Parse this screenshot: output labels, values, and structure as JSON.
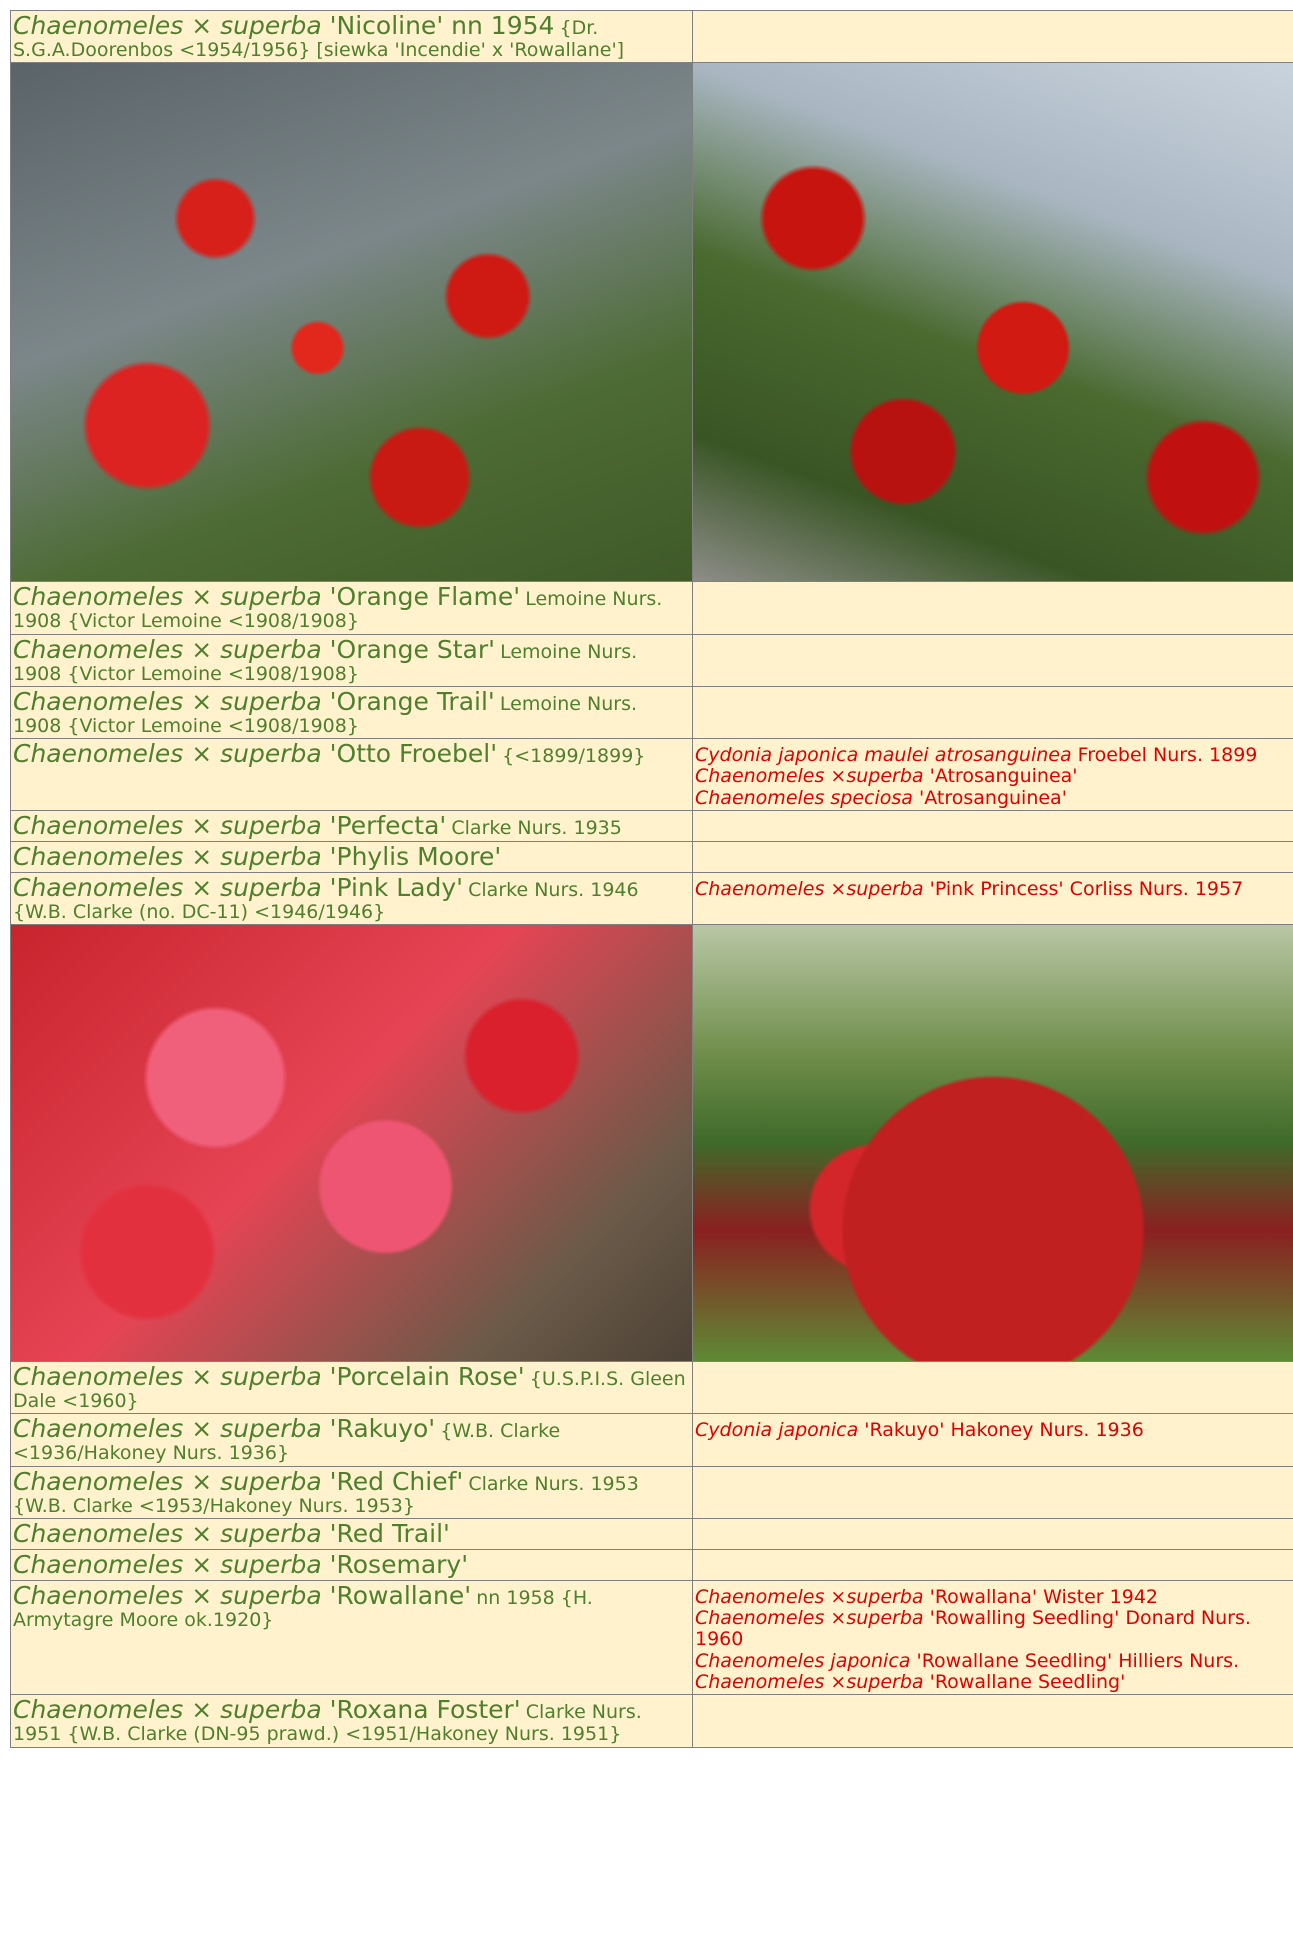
{
  "rows": [
    {
      "genus": "Chaenomeles",
      "cross": "×",
      "species": "superba",
      "cultivar": "'Nicoline'",
      "big": "nn 1954",
      "small": "{Dr. S.G.A.Doorenbos <1954/1956} [siewka 'Incendie' x 'Rowallane']",
      "synonyms": []
    },
    {
      "genus": "Chaenomeles",
      "cross": "×",
      "species": "superba",
      "cultivar": "'Orange Flame'",
      "small": "Lemoine Nurs. 1908 {Victor Lemoine <1908/1908}",
      "synonyms": []
    },
    {
      "genus": "Chaenomeles",
      "cross": "×",
      "species": "superba",
      "cultivar": "'Orange Star'",
      "small": "Lemoine Nurs. 1908 {Victor Lemoine <1908/1908}",
      "synonyms": []
    },
    {
      "genus": "Chaenomeles",
      "cross": "×",
      "species": "superba",
      "cultivar": "'Orange Trail'",
      "small": "Lemoine Nurs. 1908 {Victor Lemoine <1908/1908}",
      "synonyms": []
    },
    {
      "genus": "Chaenomeles",
      "cross": "×",
      "species": "superba",
      "cultivar": "'Otto Froebel'",
      "small": "{<1899/1899}",
      "synonyms": [
        {
          "italic": "Cydonia japonica maulei atrosanguinea",
          "rest": "Froebel Nurs. 1899"
        },
        {
          "italic": "Chaenomeles ×superba",
          "rest": "'Atrosanguinea'"
        },
        {
          "italic": "Chaenomeles speciosa",
          "rest": "'Atrosanguinea'"
        }
      ]
    },
    {
      "genus": "Chaenomeles",
      "cross": "×",
      "species": "superba",
      "cultivar": "'Perfecta'",
      "small": "Clarke Nurs. 1935",
      "synonyms": []
    },
    {
      "genus": "Chaenomeles",
      "cross": "×",
      "species": "superba",
      "cultivar": "'Phylis Moore'",
      "synonyms": []
    },
    {
      "genus": "Chaenomeles",
      "cross": "×",
      "species": "superba",
      "cultivar": "'Pink Lady'",
      "small": "Clarke Nurs. 1946 {W.B. Clarke (no. DC-11) <1946/1946}",
      "synonyms": [
        {
          "italic": "Chaenomeles ×superba",
          "rest": "'Pink Princess' Corliss Nurs. 1957"
        }
      ]
    },
    {
      "genus": "Chaenomeles",
      "cross": "×",
      "species": "superba",
      "cultivar": "'Porcelain Rose'",
      "small": "{U.S.P.I.S. Gleen Dale <1960}",
      "synonyms": []
    },
    {
      "genus": "Chaenomeles",
      "cross": "×",
      "species": "superba",
      "cultivar": "'Rakuyo'",
      "small": "{W.B. Clarke <1936/Hakoney Nurs. 1936}",
      "synonyms": [
        {
          "italic": "Cydonia japonica",
          "rest": "'Rakuyo' Hakoney Nurs. 1936"
        }
      ]
    },
    {
      "genus": "Chaenomeles",
      "cross": "×",
      "species": "superba",
      "cultivar": "'Red Chief'",
      "small": "Clarke Nurs. 1953 {W.B. Clarke <1953/Hakoney Nurs. 1953}",
      "synonyms": []
    },
    {
      "genus": "Chaenomeles",
      "cross": "×",
      "species": "superba",
      "cultivar": "'Red Trail'",
      "synonyms": []
    },
    {
      "genus": "Chaenomeles",
      "cross": "×",
      "species": "superba",
      "cultivar": "'Rosemary'",
      "synonyms": []
    },
    {
      "genus": "Chaenomeles",
      "cross": "×",
      "species": "superba",
      "cultivar": "'Rowallane'",
      "small": "nn 1958 {H. Armytagre Moore ok.1920}",
      "synonyms": [
        {
          "italic": "Chaenomeles ×superba",
          "rest": "'Rowallana' Wister 1942"
        },
        {
          "italic": "Chaenomeles ×superba",
          "rest": "'Rowalling Seedling' Donard Nurs. 1960"
        },
        {
          "italic": "Chaenomeles japonica",
          "rest": "'Rowallane Seedling' Hilliers Nurs."
        },
        {
          "italic": "Chaenomeles ×superba",
          "rest": "'Rowallane Seedling'"
        }
      ]
    },
    {
      "genus": "Chaenomeles",
      "cross": "×",
      "species": "superba",
      "cultivar": "'Roxana Foster'",
      "small": "Clarke Nurs. 1951 {W.B. Clarke (DN-95 prawd.) <1951/Hakoney Nurs. 1951}",
      "synonyms": []
    }
  ]
}
